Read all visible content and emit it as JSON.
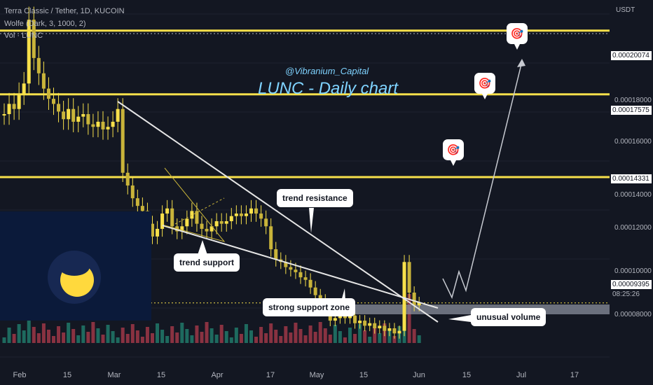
{
  "header": {
    "symbol": "Terra Classic / Tether, 1D, KUCOIN",
    "indicator": "Wolfe (Dark, 3, 1000, 2)",
    "volume": "Vol · LUNC"
  },
  "axis": {
    "currency": "USDT",
    "ticks": [
      "0.00018000",
      "0.00016000",
      "0.00014000",
      "0.00012000",
      "0.00010000",
      "0.00008000"
    ],
    "levels": [
      "0.00020074",
      "0.00017575",
      "0.00014331"
    ],
    "last_price": "0.00009395",
    "countdown": "08:25:26"
  },
  "x_axis": {
    "labels": [
      "Feb",
      "15",
      "Mar",
      "15",
      "Apr",
      "17",
      "May",
      "15",
      "Jun",
      "15",
      "Jul",
      "17"
    ]
  },
  "watermark": {
    "handle": "@Vibranium_Capital",
    "title": "LUNC - Daily chart"
  },
  "annotations": {
    "trend_resistance": "trend resistance",
    "trend_support": "trend support",
    "support_zone": "strong support zone",
    "unusual_volume": "unusual volume"
  },
  "icons": [
    "target-icon",
    "target-icon",
    "target-icon"
  ],
  "colors": {
    "background": "#131722",
    "candle": "#f7e04b",
    "levels": "#f7e04b",
    "volume_up": "#22806f",
    "volume_down": "#a8394a"
  },
  "chart_data": {
    "type": "candlestick",
    "title": "LUNC - Daily chart",
    "ylabel": "USDT",
    "ylim": [
      7e-05,
      0.00021
    ],
    "price_levels": [
      0.00020074,
      0.00017575,
      0.00014331
    ],
    "last_price": 9.395e-05,
    "closes": [
      0.000168,
      0.000172,
      0.00017,
      0.000176,
      0.00018,
      0.000205,
      0.00019,
      0.000184,
      0.000178,
      0.000174,
      0.000172,
      0.000169,
      0.000166,
      0.00017,
      0.000165,
      0.000167,
      0.000168,
      0.000164,
      0.000163,
      0.000165,
      0.000162,
      0.000163,
      0.000165,
      0.00017,
      0.000145,
      0.00014,
      0.000135,
      0.000132,
      0.00013,
      0.000125,
      0.00012,
      0.000123,
      0.000129,
      0.000131,
      0.000124,
      0.000122,
      0.000124,
      0.000127,
      0.00013,
      0.000125,
      0.000123,
      0.000122,
      0.000124,
      0.000126,
      0.000125,
      0.000126,
      0.000128,
      0.000129,
      0.000128,
      0.000129,
      0.000131,
      0.000129,
      0.000127,
      0.000124,
      0.000115,
      0.000111,
      0.00011,
      0.000108,
      0.000107,
      0.000106,
      0.000104,
      0.000103,
      0.0001,
      9.7e-05,
      9.5e-05,
      9.1e-05,
      8.7e-05,
      8.8e-05,
      9e-05,
      8.8e-05,
      8.9e-05,
      8.6e-05,
      8.7e-05,
      8.5e-05,
      8.6e-05,
      8.4e-05,
      8.5e-05,
      8.3e-05,
      8.4e-05,
      8.2e-05,
      8.3e-05,
      0.00011,
      9.8e-05,
      9.3e-05,
      9.4e-05
    ]
  }
}
